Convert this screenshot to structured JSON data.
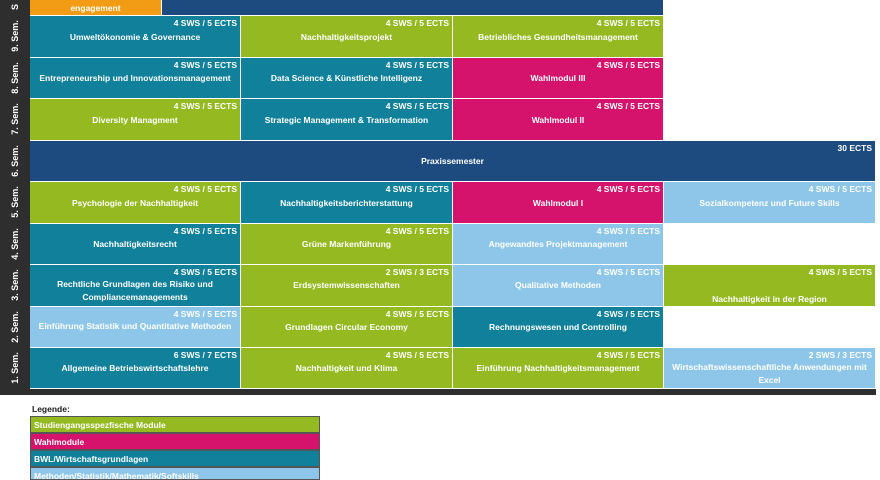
{
  "semesters": [
    "S",
    "9. Sem.",
    "8. Sem.",
    "7. Sem.",
    "6. Sem.",
    "5. Sem.",
    "4. Sem.",
    "3. Sem.",
    "2. Sem.",
    "1. Sem."
  ],
  "rows": {
    "top": {
      "partial_title": "engagement"
    },
    "sem9": [
      {
        "ects": "4 SWS / 5 ECTS",
        "title": "Umweltökonomie & Governance"
      },
      {
        "ects": "4 SWS / 5 ECTS",
        "title": "Nachhaltigkeitsprojekt"
      },
      {
        "ects": "4 SWS / 5 ECTS",
        "title": "Betriebliches Gesundheitsmanagement"
      }
    ],
    "sem8": [
      {
        "ects": "4 SWS / 5 ECTS",
        "title": "Entrepreneurship und Innovationsmanagement"
      },
      {
        "ects": "4 SWS / 5 ECTS",
        "title": "Data Science & Künstliche Intelligenz"
      },
      {
        "ects": "4 SWS / 5 ECTS",
        "title": "Wahlmodul III"
      }
    ],
    "sem7": [
      {
        "ects": "4 SWS / 5 ECTS",
        "title": "Diversity Managment"
      },
      {
        "ects": "4 SWS / 5 ECTS",
        "title": "Strategic Management & Transformation"
      },
      {
        "ects": "4 SWS / 5 ECTS",
        "title": "Wahlmodul II"
      }
    ],
    "sem6": {
      "ects": "30 ECTS",
      "title": "Praxissemester"
    },
    "sem5": [
      {
        "ects": "4 SWS / 5 ECTS",
        "title": "Psychologie der Nachhaltigkeit"
      },
      {
        "ects": "4 SWS / 5 ECTS",
        "title": "Nachhaltigkeitsberichterstattung"
      },
      {
        "ects": "4 SWS / 5 ECTS",
        "title": "Wahlmodul I"
      },
      {
        "ects": "4 SWS / 5 ECTS",
        "title": "Sozialkompetenz und Future Skills"
      }
    ],
    "sem4": [
      {
        "ects": "4 SWS / 5 ECTS",
        "title": "Nachhaltigkeitsrecht"
      },
      {
        "ects": "4 SWS / 5 ECTS",
        "title": "Grüne Markenführung"
      },
      {
        "ects": "4 SWS / 5 ECTS",
        "title": "Angewandtes Projektmanagement"
      }
    ],
    "sem3": [
      {
        "ects": "4 SWS / 5 ECTS",
        "title": "Rechtliche Grundlagen des Risiko und Compliancemanagements"
      },
      {
        "ects": "2 SWS / 3 ECTS",
        "title": "Erdsystemwissenschaften"
      },
      {
        "ects": "4 SWS / 5 ECTS",
        "title": "Qualitative Methoden"
      },
      {
        "ects": "4 SWS / 5 ECTS",
        "title": "Nachhaltigkeit in der Region"
      }
    ],
    "sem2": [
      {
        "ects": "4 SWS / 5 ECTS",
        "title": "Einführung Statistik und Quantitative Methoden"
      },
      {
        "ects": "4 SWS / 5 ECTS",
        "title": "Grundlagen Circular Economy"
      },
      {
        "ects": "4 SWS / 5 ECTS",
        "title": "Rechnungswesen und Controlling"
      }
    ],
    "sem1": [
      {
        "ects": "6 SWS / 7 ECTS",
        "title": "Allgemeine Betriebswirtschaftslehre"
      },
      {
        "ects": "4 SWS / 5 ECTS",
        "title": "Nachhaltigkeit und Klima"
      },
      {
        "ects": "4 SWS / 5 ECTS",
        "title": "Einführung Nachhaltigkeitsmanagement"
      },
      {
        "ects": "2 SWS / 3 ECTS",
        "title": "Wirtschaftswissenschaftliche Anwendungen mit Excel"
      }
    ]
  },
  "legend": {
    "title": "Legende:",
    "items": [
      {
        "label": "Studiengangsspezfische Module",
        "color": "#95b921"
      },
      {
        "label": "Wahlmodule",
        "color": "#d5136c"
      },
      {
        "label": "BWL/Wirtschaftsgrundlagen",
        "color": "#11809b"
      },
      {
        "label": "Methoden/Statistik/Mathematik/Softskills",
        "color": "#8ec6ea"
      }
    ]
  },
  "colors": {
    "green": "#95b921",
    "pink": "#d5136c",
    "teal": "#11809b",
    "light_blue": "#8ec6ea",
    "navy": "#1d4b80",
    "orange": "#f29b14"
  }
}
